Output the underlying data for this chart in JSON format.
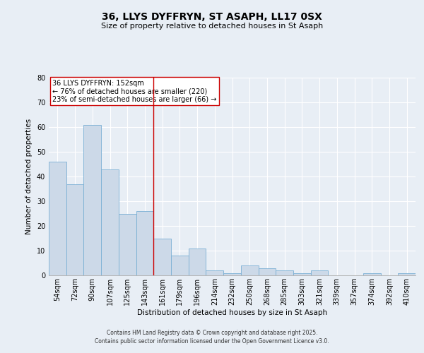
{
  "title": "36, LLYS DYFFRYN, ST ASAPH, LL17 0SX",
  "subtitle": "Size of property relative to detached houses in St Asaph",
  "xlabel": "Distribution of detached houses by size in St Asaph",
  "ylabel": "Number of detached properties",
  "bar_color": "#ccd9e8",
  "bar_edge_color": "#7aafd4",
  "categories": [
    "54sqm",
    "72sqm",
    "90sqm",
    "107sqm",
    "125sqm",
    "143sqm",
    "161sqm",
    "179sqm",
    "196sqm",
    "214sqm",
    "232sqm",
    "250sqm",
    "268sqm",
    "285sqm",
    "303sqm",
    "321sqm",
    "339sqm",
    "357sqm",
    "374sqm",
    "392sqm",
    "410sqm"
  ],
  "values": [
    46,
    37,
    61,
    43,
    25,
    26,
    15,
    8,
    11,
    2,
    1,
    4,
    3,
    2,
    1,
    2,
    0,
    0,
    1,
    0,
    1
  ],
  "ylim": [
    0,
    80
  ],
  "yticks": [
    0,
    10,
    20,
    30,
    40,
    50,
    60,
    70,
    80
  ],
  "property_line_x": 5.5,
  "property_line_color": "#cc0000",
  "annotation_text": "36 LLYS DYFFRYN: 152sqm\n← 76% of detached houses are smaller (220)\n23% of semi-detached houses are larger (66) →",
  "annotation_box_color": "#ffffff",
  "annotation_box_edge_color": "#cc0000",
  "footer_line1": "Contains HM Land Registry data © Crown copyright and database right 2025.",
  "footer_line2": "Contains public sector information licensed under the Open Government Licence v3.0.",
  "background_color": "#e8eef5",
  "plot_background_color": "#e8eef5",
  "title_fontsize": 10,
  "subtitle_fontsize": 8,
  "axis_label_fontsize": 7.5,
  "tick_fontsize": 7,
  "annotation_fontsize": 7,
  "footer_fontsize": 5.5
}
